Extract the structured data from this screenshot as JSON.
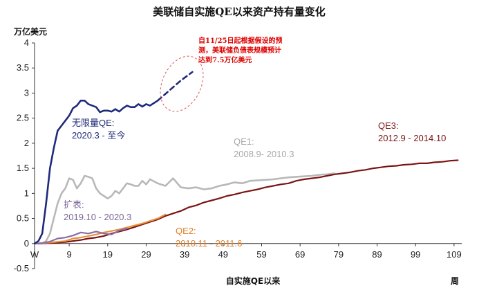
{
  "chart_data": {
    "type": "line",
    "title": "美联储自实施QE以来资产持有量变化",
    "ylabel": "万亿美元",
    "xlabel": "自实施QE以来",
    "xunit": "周",
    "ylim": [
      -0.5,
      4
    ],
    "xlim": [
      0,
      111
    ],
    "yticks": [
      "-0.5",
      "0",
      "0.5",
      "1",
      "1.5",
      "2",
      "2.5",
      "3",
      "3.5",
      "4"
    ],
    "xticks": [
      "W",
      "9",
      "19",
      "29",
      "39",
      "49",
      "59",
      "69",
      "79",
      "89",
      "99",
      "109"
    ],
    "colors": {
      "unlimited_qe": "#1f2a7a",
      "expansion": "#8a6fa6",
      "qe1": "#b8b8b8",
      "qe2": "#e8913a",
      "qe3": "#7a1414",
      "note": "#e00000"
    },
    "annotations": {
      "unlimited_qe": {
        "name": "无限量QE:",
        "period": "2020.3 - 至今"
      },
      "expansion": {
        "name": "扩表:",
        "period": "2019.10 - 2020.3"
      },
      "qe1": {
        "name": "QE1:",
        "period": "2008.9- 2010.3"
      },
      "qe2": {
        "name": "QE2:",
        "period": "2010.11 - 2011.6"
      },
      "qe3": {
        "name": "QE3:",
        "period": "2012.9 - 2014.10"
      },
      "forecast_note": [
        "自11/25日起根据假设的预",
        "测，美联储负债表规模预计",
        "达到7.5万亿美元"
      ]
    },
    "series": [
      {
        "key": "unlimited_qe",
        "x": [
          0,
          1,
          2,
          3,
          4,
          5,
          6,
          7,
          8,
          9,
          10,
          11,
          12,
          13,
          14,
          15,
          16,
          17,
          18,
          19,
          20,
          21,
          22,
          23,
          24,
          25,
          26,
          27,
          28,
          29,
          30,
          31,
          32
        ],
        "values": [
          0,
          0.05,
          0.2,
          0.8,
          1.5,
          1.9,
          2.25,
          2.35,
          2.45,
          2.55,
          2.7,
          2.75,
          2.85,
          2.85,
          2.78,
          2.75,
          2.72,
          2.62,
          2.65,
          2.65,
          2.63,
          2.68,
          2.63,
          2.7,
          2.75,
          2.72,
          2.72,
          2.78,
          2.73,
          2.78,
          2.75,
          2.8,
          2.85
        ]
      },
      {
        "key": "unlimited_qe_forecast",
        "x": [
          32,
          35,
          38,
          41
        ],
        "values": [
          2.85,
          3.05,
          3.25,
          3.42
        ]
      },
      {
        "key": "expansion",
        "x": [
          0,
          2,
          4,
          6,
          8,
          10,
          12,
          14,
          16,
          18,
          20,
          22,
          24
        ],
        "values": [
          0,
          0.01,
          0.04,
          0.1,
          0.12,
          0.16,
          0.22,
          0.2,
          0.24,
          0.2,
          0.18,
          0.26,
          0.3
        ]
      },
      {
        "key": "qe1",
        "x": [
          0,
          2,
          3,
          4,
          5,
          6,
          7,
          8,
          9,
          10,
          11,
          12,
          13,
          14,
          15,
          16,
          17,
          18,
          19,
          20,
          21,
          22,
          23,
          24,
          25,
          26,
          27,
          28,
          29,
          30,
          32,
          34,
          36,
          38,
          40,
          42,
          44,
          46,
          48,
          50,
          52,
          54,
          56,
          58,
          60,
          62,
          64,
          66,
          68,
          70,
          72,
          74,
          76,
          78
        ],
        "values": [
          0,
          0,
          0.05,
          0.2,
          0.5,
          0.8,
          1.0,
          1.1,
          1.3,
          1.27,
          1.1,
          1.2,
          1.35,
          1.33,
          1.3,
          1.1,
          1.0,
          0.95,
          0.9,
          0.95,
          1.05,
          1.0,
          1.1,
          1.2,
          1.18,
          1.15,
          1.15,
          1.25,
          1.18,
          1.28,
          1.2,
          1.15,
          1.3,
          1.12,
          1.1,
          1.12,
          1.08,
          1.1,
          1.15,
          1.18,
          1.22,
          1.2,
          1.25,
          1.26,
          1.27,
          1.28,
          1.3,
          1.32,
          1.33,
          1.34,
          1.35,
          1.37,
          1.38,
          1.4
        ]
      },
      {
        "key": "qe2",
        "x": [
          0,
          4,
          8,
          10,
          12,
          14,
          16,
          18,
          20,
          22,
          24,
          26,
          28,
          30,
          32,
          34
        ],
        "values": [
          0,
          0.02,
          0.05,
          0.1,
          0.12,
          0.15,
          0.18,
          0.22,
          0.25,
          0.28,
          0.32,
          0.36,
          0.4,
          0.45,
          0.5,
          0.58
        ]
      },
      {
        "key": "qe3",
        "x": [
          0,
          4,
          8,
          12,
          14,
          16,
          18,
          20,
          22,
          24,
          26,
          28,
          30,
          32,
          34,
          36,
          38,
          40,
          42,
          44,
          46,
          48,
          50,
          52,
          54,
          56,
          58,
          60,
          62,
          64,
          66,
          68,
          70,
          72,
          74,
          76,
          78,
          80,
          82,
          84,
          86,
          88,
          90,
          92,
          94,
          96,
          98,
          100,
          102,
          104,
          106,
          108,
          110
        ],
        "values": [
          0,
          0.01,
          0.03,
          0.07,
          0.1,
          0.12,
          0.15,
          0.2,
          0.24,
          0.28,
          0.33,
          0.38,
          0.43,
          0.48,
          0.55,
          0.6,
          0.65,
          0.72,
          0.76,
          0.82,
          0.86,
          0.9,
          0.95,
          0.98,
          1.02,
          1.05,
          1.08,
          1.12,
          1.15,
          1.18,
          1.2,
          1.25,
          1.28,
          1.3,
          1.32,
          1.35,
          1.38,
          1.4,
          1.42,
          1.45,
          1.47,
          1.5,
          1.52,
          1.54,
          1.55,
          1.57,
          1.58,
          1.6,
          1.6,
          1.62,
          1.63,
          1.65,
          1.66
        ]
      }
    ]
  }
}
